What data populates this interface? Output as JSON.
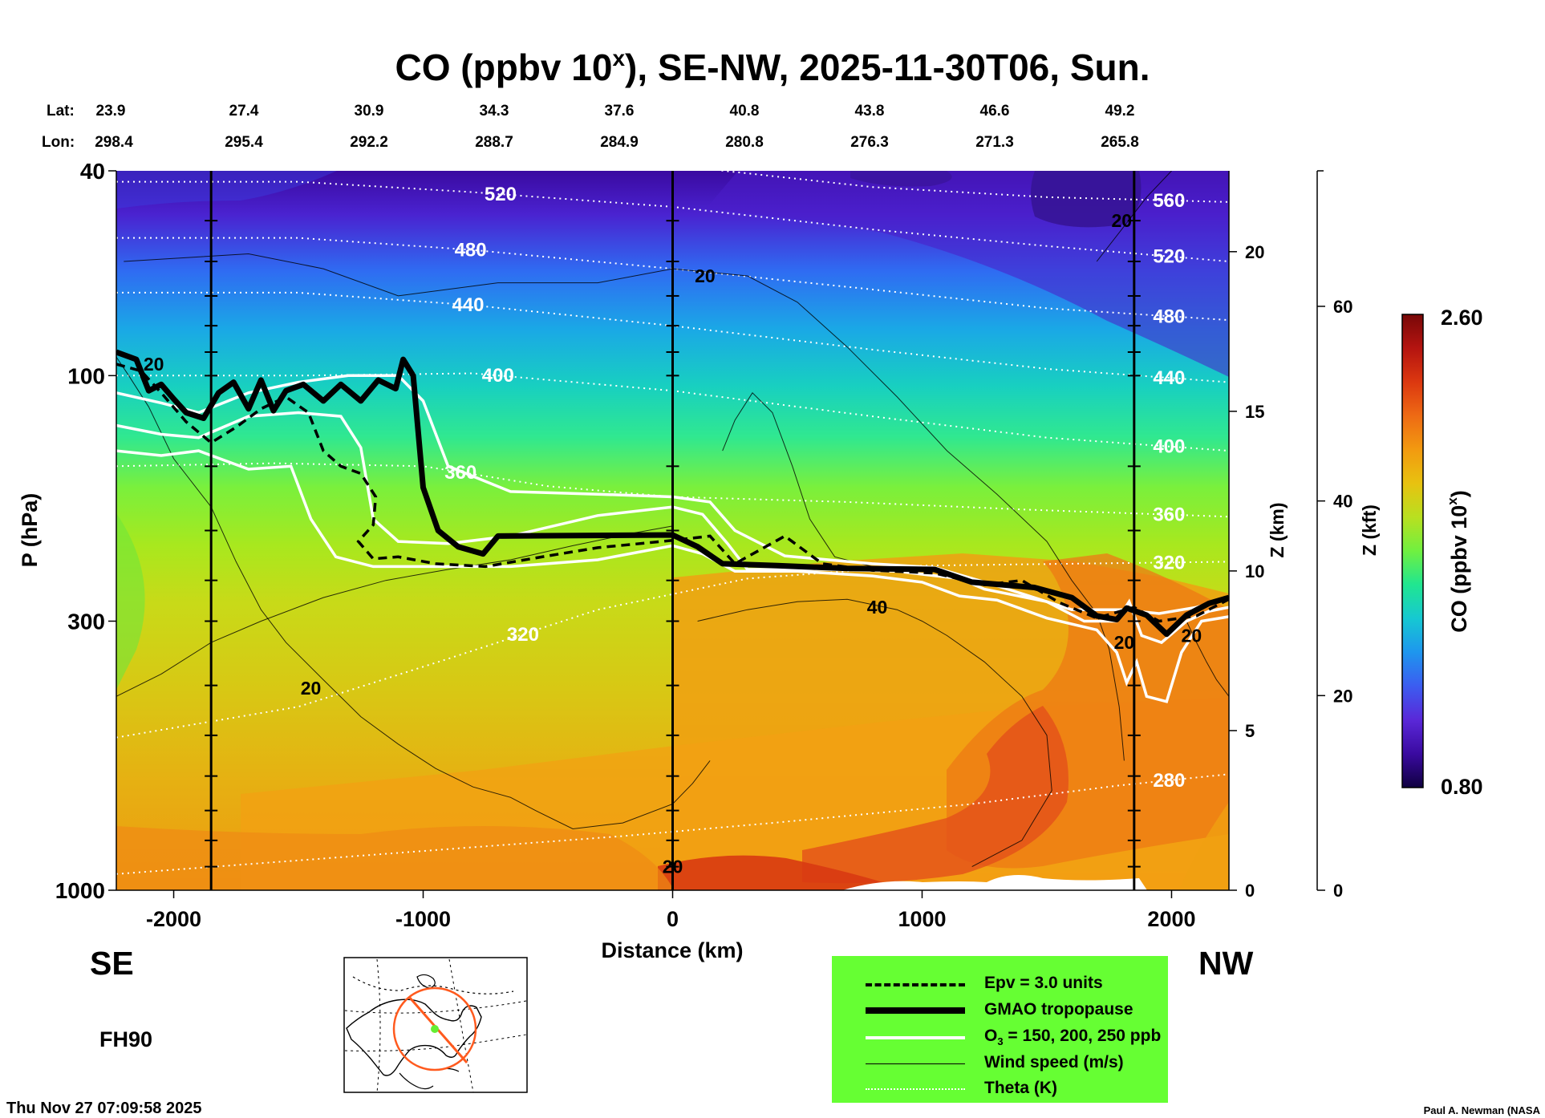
{
  "chart_data": {
    "type": "heatmap",
    "title": "CO (ppbv 10",
    "title_sup": "x",
    "title_rest": "), SE-NW, 2025-11-30T06, Sun.",
    "xlabel": "Distance (km)",
    "ylabel": "P (hPa)",
    "ylabel_right_km": "Z (km)",
    "ylabel_right_kft": "Z (kft)",
    "xlim": [
      -2230,
      2230
    ],
    "ylim": [
      1000,
      40
    ],
    "y_scale": "log",
    "x_ticks": [
      -2000,
      -1000,
      0,
      1000,
      2000
    ],
    "x_tick_labels": [
      "-2000",
      "-1000",
      "0",
      "1000",
      "2000"
    ],
    "y_ticks": [
      40,
      100,
      300,
      1000
    ],
    "y_tick_labels": [
      "40",
      "100",
      "300",
      "1000"
    ],
    "z_km_ticks": [
      0,
      5,
      10,
      15,
      20
    ],
    "z_km_labels": [
      "0",
      "5",
      "10",
      "15",
      "20"
    ],
    "z_kft_ticks": [
      0,
      20,
      40,
      60
    ],
    "z_kft_labels": [
      "0",
      "20",
      "40",
      "60"
    ],
    "lat_label": "Lat:",
    "lon_label": "Lon:",
    "lat": [
      "23.9",
      "27.4",
      "30.9",
      "34.3",
      "37.6",
      "40.8",
      "43.8",
      "46.6",
      "49.2"
    ],
    "lon": [
      "298.4",
      "295.4",
      "292.2",
      "288.7",
      "284.9",
      "280.8",
      "276.3",
      "271.3",
      "265.8"
    ],
    "colorbar": {
      "label": "CO (ppbv 10",
      "label_sup": "x",
      "label_rest": ")",
      "min_label": "0.80",
      "max_label": "2.60",
      "colors": [
        "#100040",
        "#3a0aa0",
        "#5a28d8",
        "#3c5cf0",
        "#1e96ee",
        "#16c8d2",
        "#20e690",
        "#70f040",
        "#b8e020",
        "#e8c210",
        "#f29a10",
        "#ee6a14",
        "#dc3810",
        "#b41410",
        "#780808"
      ]
    },
    "vertical_lines_x": [
      -1850,
      0,
      1850
    ],
    "tropopause": [
      [
        -2230,
        90
      ],
      [
        -2150,
        93
      ],
      [
        -2100,
        107
      ],
      [
        -2050,
        104
      ],
      [
        -2000,
        111
      ],
      [
        -1950,
        118
      ],
      [
        -1880,
        121
      ],
      [
        -1820,
        108
      ],
      [
        -1760,
        103
      ],
      [
        -1700,
        116
      ],
      [
        -1650,
        102
      ],
      [
        -1600,
        117
      ],
      [
        -1550,
        107
      ],
      [
        -1480,
        104
      ],
      [
        -1400,
        112
      ],
      [
        -1330,
        104
      ],
      [
        -1250,
        112
      ],
      [
        -1180,
        102
      ],
      [
        -1110,
        106
      ],
      [
        -1080,
        93
      ],
      [
        -1040,
        100
      ],
      [
        -1000,
        165
      ],
      [
        -940,
        200
      ],
      [
        -860,
        215
      ],
      [
        -760,
        222
      ],
      [
        -700,
        205
      ],
      [
        0,
        204
      ],
      [
        100,
        215
      ],
      [
        200,
        232
      ],
      [
        420,
        234
      ],
      [
        700,
        237
      ],
      [
        1050,
        238
      ],
      [
        1200,
        252
      ],
      [
        1450,
        258
      ],
      [
        1600,
        270
      ],
      [
        1700,
        293
      ],
      [
        1780,
        298
      ],
      [
        1820,
        283
      ],
      [
        1900,
        292
      ],
      [
        1980,
        318
      ],
      [
        2060,
        292
      ],
      [
        2150,
        277
      ],
      [
        2230,
        270
      ]
    ],
    "epv_3": [
      [
        -2230,
        95
      ],
      [
        -2130,
        98
      ],
      [
        -2050,
        108
      ],
      [
        -1950,
        123
      ],
      [
        -1850,
        135
      ],
      [
        -1750,
        126
      ],
      [
        -1650,
        116
      ],
      [
        -1550,
        110
      ],
      [
        -1460,
        118
      ],
      [
        -1400,
        140
      ],
      [
        -1330,
        150
      ],
      [
        -1250,
        155
      ],
      [
        -1190,
        172
      ],
      [
        -1200,
        195
      ],
      [
        -1260,
        210
      ],
      [
        -1200,
        227
      ],
      [
        -1100,
        225
      ],
      [
        -950,
        232
      ],
      [
        -750,
        235
      ],
      [
        -500,
        224
      ],
      [
        -300,
        216
      ],
      [
        0,
        209
      ],
      [
        150,
        205
      ],
      [
        250,
        232
      ],
      [
        450,
        205
      ],
      [
        600,
        232
      ],
      [
        800,
        239
      ],
      [
        1050,
        242
      ],
      [
        1250,
        255
      ],
      [
        1400,
        250
      ],
      [
        1550,
        276
      ],
      [
        1700,
        296
      ],
      [
        1850,
        282
      ],
      [
        1950,
        300
      ],
      [
        2100,
        293
      ],
      [
        2230,
        272
      ]
    ],
    "o3_150": [
      [
        -2230,
        108
      ],
      [
        -2050,
        113
      ],
      [
        -1900,
        118
      ],
      [
        -1700,
        108
      ],
      [
        -1500,
        103
      ],
      [
        -1300,
        100
      ],
      [
        -1100,
        100
      ],
      [
        -1000,
        112
      ],
      [
        -900,
        150
      ],
      [
        -650,
        168
      ],
      [
        -300,
        170
      ],
      [
        0,
        172
      ],
      [
        150,
        176
      ],
      [
        250,
        200
      ],
      [
        450,
        224
      ],
      [
        800,
        232
      ],
      [
        1050,
        236
      ],
      [
        1300,
        256
      ],
      [
        1600,
        285
      ],
      [
        1800,
        285
      ],
      [
        1950,
        290
      ],
      [
        2100,
        282
      ],
      [
        2230,
        270
      ]
    ],
    "o3_200": [
      [
        -2230,
        125
      ],
      [
        -2050,
        130
      ],
      [
        -1900,
        132
      ],
      [
        -1700,
        120
      ],
      [
        -1500,
        118
      ],
      [
        -1330,
        120
      ],
      [
        -1250,
        138
      ],
      [
        -1200,
        190
      ],
      [
        -1100,
        210
      ],
      [
        -900,
        212
      ],
      [
        -650,
        205
      ],
      [
        -300,
        187
      ],
      [
        0,
        180
      ],
      [
        120,
        186
      ],
      [
        220,
        212
      ],
      [
        300,
        238
      ],
      [
        600,
        238
      ],
      [
        900,
        240
      ],
      [
        1150,
        248
      ],
      [
        1250,
        260
      ],
      [
        1500,
        275
      ],
      [
        1650,
        300
      ],
      [
        1780,
        300
      ],
      [
        1830,
        275
      ],
      [
        1880,
        320
      ],
      [
        1960,
        330
      ],
      [
        2060,
        300
      ],
      [
        2150,
        287
      ],
      [
        2230,
        282
      ]
    ],
    "o3_250": [
      [
        -2230,
        140
      ],
      [
        -2050,
        143
      ],
      [
        -1900,
        140
      ],
      [
        -1700,
        152
      ],
      [
        -1530,
        150
      ],
      [
        -1450,
        190
      ],
      [
        -1350,
        225
      ],
      [
        -1200,
        235
      ],
      [
        -900,
        235
      ],
      [
        -650,
        235
      ],
      [
        -300,
        228
      ],
      [
        0,
        214
      ],
      [
        120,
        222
      ],
      [
        250,
        240
      ],
      [
        500,
        240
      ],
      [
        800,
        245
      ],
      [
        1000,
        252
      ],
      [
        1150,
        268
      ],
      [
        1300,
        273
      ],
      [
        1500,
        296
      ],
      [
        1700,
        312
      ],
      [
        1780,
        345
      ],
      [
        1820,
        395
      ],
      [
        1860,
        360
      ],
      [
        1900,
        420
      ],
      [
        1980,
        430
      ],
      [
        2040,
        345
      ],
      [
        2120,
        300
      ],
      [
        2230,
        294
      ]
    ],
    "theta": [
      {
        "label": "280",
        "points": [
          [
            -2230,
            930
          ],
          [
            -1500,
            875
          ],
          [
            -800,
            825
          ],
          [
            -200,
            785
          ],
          [
            400,
            740
          ],
          [
            1200,
            680
          ],
          [
            1800,
            625
          ],
          [
            2230,
            595
          ]
        ]
      },
      {
        "label": "320",
        "points": [
          [
            -2230,
            505
          ],
          [
            -1500,
            440
          ],
          [
            -900,
            355
          ],
          [
            -300,
            285
          ],
          [
            300,
            248
          ],
          [
            1000,
            234
          ],
          [
            1600,
            232
          ],
          [
            2230,
            230
          ]
        ]
      },
      {
        "label": "360",
        "points": [
          [
            -2230,
            150
          ],
          [
            -1600,
            148
          ],
          [
            -1000,
            150
          ],
          [
            -500,
            164
          ],
          [
            0,
            172
          ],
          [
            700,
            176
          ],
          [
            1400,
            182
          ],
          [
            2230,
            188
          ]
        ]
      },
      {
        "label": "400",
        "points": [
          [
            -2230,
            100
          ],
          [
            -1500,
            100
          ],
          [
            -800,
            99
          ],
          [
            0,
            107
          ],
          [
            800,
            120
          ],
          [
            1500,
            132
          ],
          [
            2230,
            140
          ]
        ]
      },
      {
        "label": "440",
        "points": [
          [
            -2230,
            69
          ],
          [
            -1500,
            69
          ],
          [
            -800,
            73
          ],
          [
            0,
            80
          ],
          [
            800,
            89
          ],
          [
            1500,
            97
          ],
          [
            2230,
            103
          ]
        ]
      },
      {
        "label": "480",
        "points": [
          [
            -2230,
            54
          ],
          [
            -1500,
            54
          ],
          [
            -800,
            57
          ],
          [
            0,
            62
          ],
          [
            800,
            68
          ],
          [
            1500,
            74
          ],
          [
            2230,
            78
          ]
        ]
      },
      {
        "label": "520",
        "points": [
          [
            -2230,
            42
          ],
          [
            -1500,
            42
          ],
          [
            -800,
            44
          ],
          [
            0,
            47
          ],
          [
            800,
            52
          ],
          [
            1500,
            56
          ],
          [
            2230,
            60
          ]
        ]
      },
      {
        "label": "560",
        "points": [
          [
            -2230,
            35
          ],
          [
            -1500,
            35
          ],
          [
            -800,
            36
          ],
          [
            0,
            39
          ],
          [
            800,
            43
          ],
          [
            1500,
            45
          ],
          [
            2230,
            46
          ]
        ]
      }
    ],
    "wind": [
      {
        "label": "20",
        "points": [
          [
            -2230,
            92
          ],
          [
            -2180,
            100
          ],
          [
            -2100,
            115
          ],
          [
            -2000,
            145
          ],
          [
            -1850,
            180
          ],
          [
            -1750,
            230
          ],
          [
            -1650,
            285
          ],
          [
            -1550,
            330
          ],
          [
            -1400,
            390
          ],
          [
            -1250,
            460
          ],
          [
            -1100,
            520
          ],
          [
            -950,
            580
          ],
          [
            -800,
            630
          ],
          [
            -650,
            660
          ],
          [
            -550,
            700
          ],
          [
            -400,
            760
          ],
          [
            -200,
            740
          ],
          [
            0,
            680
          ],
          [
            80,
            620
          ],
          [
            150,
            560
          ]
        ]
      },
      {
        "label": "20",
        "points": [
          [
            -2200,
            60
          ],
          [
            -1700,
            58
          ],
          [
            -1400,
            62
          ],
          [
            -1100,
            70
          ],
          [
            -700,
            66
          ],
          [
            -300,
            66
          ],
          [
            0,
            62
          ],
          [
            300,
            64
          ],
          [
            500,
            72
          ],
          [
            700,
            88
          ],
          [
            900,
            110
          ],
          [
            1100,
            140
          ],
          [
            1300,
            170
          ],
          [
            1500,
            210
          ],
          [
            1600,
            250
          ],
          [
            1700,
            290
          ],
          [
            1750,
            340
          ],
          [
            1790,
            440
          ],
          [
            1810,
            560
          ]
        ]
      },
      {
        "label": "40",
        "points": [
          [
            100,
            300
          ],
          [
            300,
            285
          ],
          [
            500,
            275
          ],
          [
            700,
            272
          ],
          [
            900,
            285
          ],
          [
            1000,
            300
          ],
          [
            1100,
            320
          ],
          [
            1250,
            360
          ],
          [
            1400,
            420
          ],
          [
            1500,
            500
          ],
          [
            1520,
            640
          ],
          [
            1400,
            800
          ],
          [
            1200,
            900
          ]
        ]
      },
      {
        "label": "20",
        "points": [
          [
            1700,
            60
          ],
          [
            1800,
            52
          ],
          [
            1900,
            45
          ],
          [
            2000,
            40
          ]
        ]
      },
      {
        "label": "",
        "points": [
          [
            -2230,
            420
          ],
          [
            -2050,
            380
          ],
          [
            -1850,
            330
          ],
          [
            -1650,
            300
          ],
          [
            -1400,
            270
          ],
          [
            -1150,
            250
          ],
          [
            -900,
            238
          ],
          [
            -650,
            228
          ],
          [
            -400,
            214
          ],
          [
            -150,
            202
          ],
          [
            0,
            196
          ]
        ]
      },
      {
        "label": "",
        "points": [
          [
            200,
            140
          ],
          [
            250,
            122
          ],
          [
            320,
            108
          ],
          [
            400,
            118
          ],
          [
            480,
            150
          ],
          [
            550,
            190
          ],
          [
            650,
            225
          ],
          [
            800,
            235
          ]
        ]
      },
      {
        "label": "20",
        "points": [
          [
            2060,
            300
          ],
          [
            2100,
            330
          ],
          [
            2140,
            360
          ],
          [
            2180,
            390
          ],
          [
            2230,
            420
          ]
        ]
      }
    ]
  },
  "labels": {
    "se": "SE",
    "nw": "NW",
    "forecast_hour": "FH90",
    "timestamp": "Thu Nov 27 07:09:58 2025",
    "credit": "Paul A. Newman (NASA"
  },
  "legend": {
    "items": [
      {
        "label": "Epv = 3.0 units",
        "style": "dashed",
        "color": "#000000"
      },
      {
        "label": "GMAO tropopause",
        "style": "thick",
        "color": "#000000"
      },
      {
        "label": "O",
        "label_sub": "3",
        "label_rest": " = 150, 200, 250 ppb",
        "style": "white",
        "color": "#ffffff"
      },
      {
        "label": "Wind speed (m/s)",
        "style": "thin",
        "color": "#000000"
      },
      {
        "label": "Theta (K)",
        "style": "dotted",
        "color": "#ffffff"
      }
    ]
  }
}
